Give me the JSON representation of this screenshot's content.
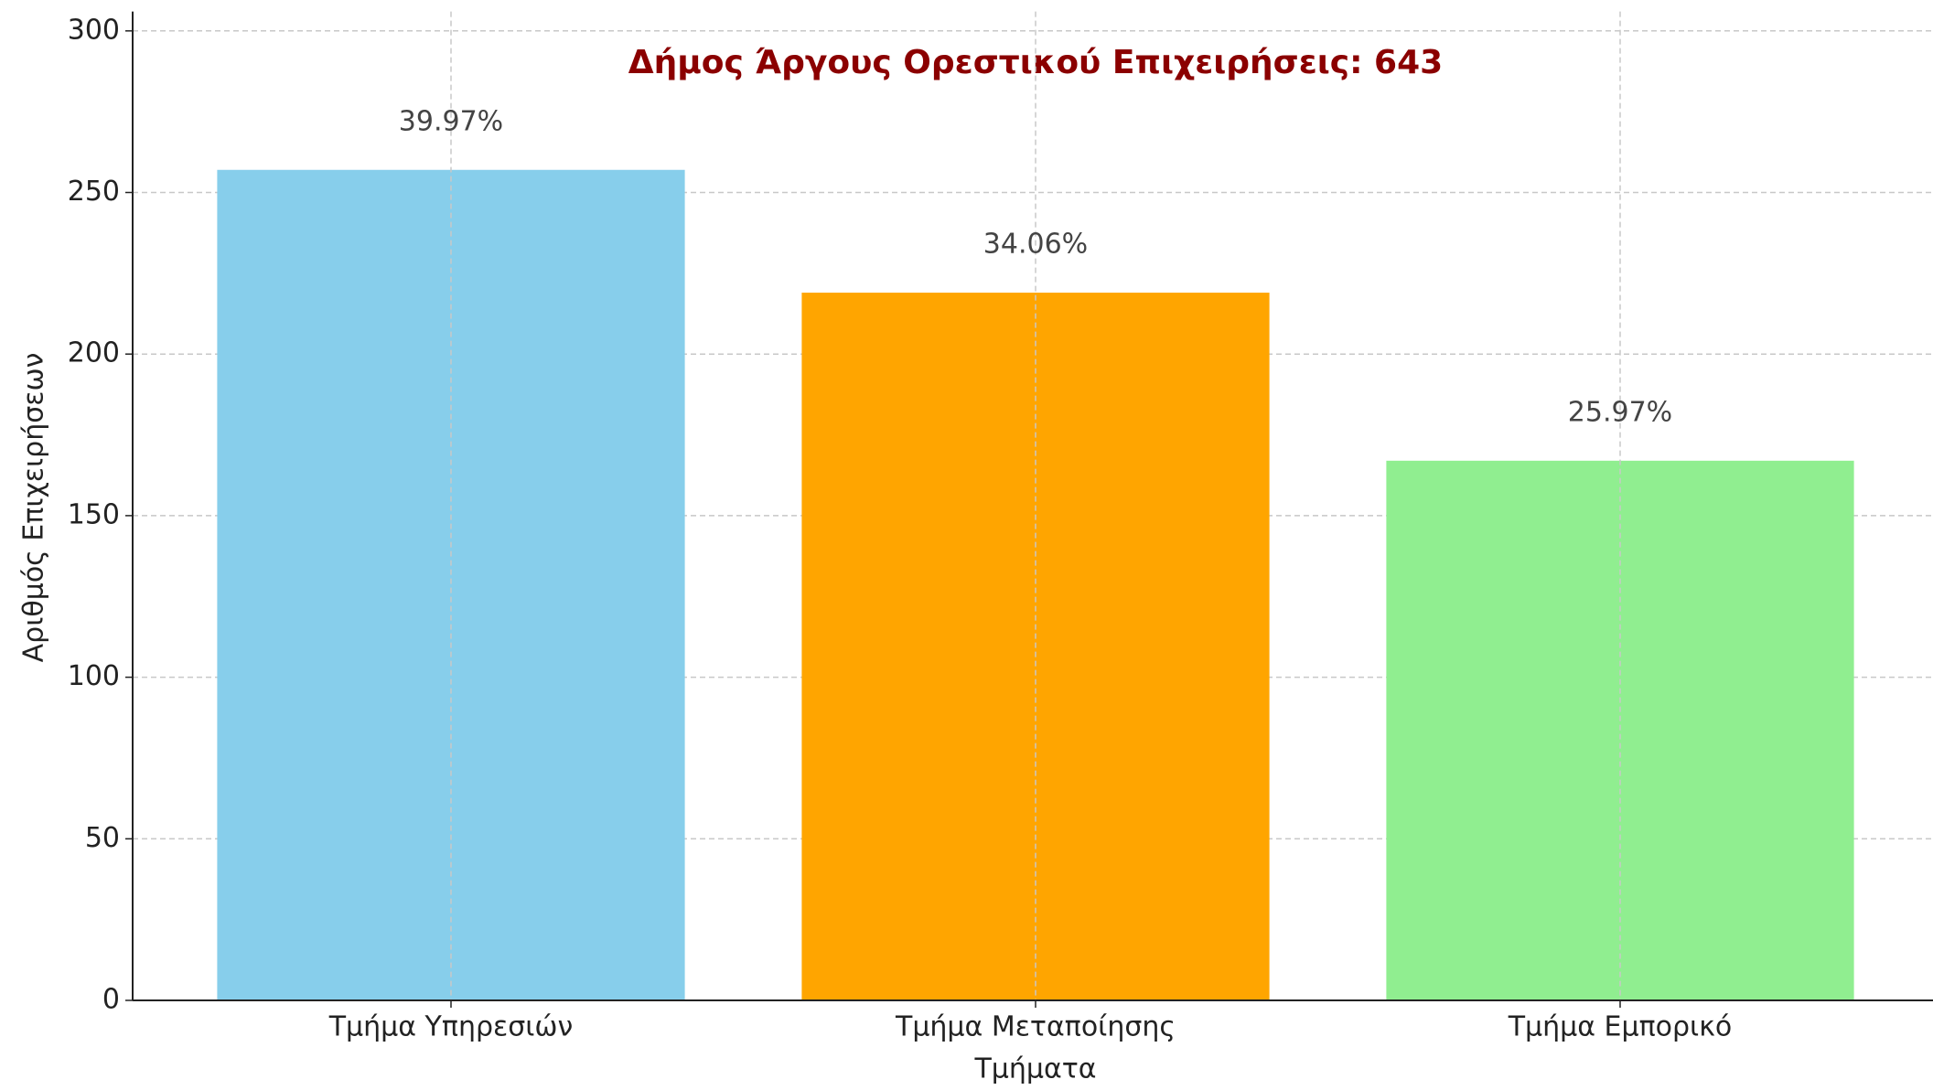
{
  "chart_data": {
    "type": "bar",
    "title": "Δήμος Άργους Ορεστικού Επιχειρήσεις: 643",
    "xlabel": "Τμήματα",
    "ylabel": "Αριθμός Επιχειρήσεων",
    "categories": [
      "Τμήμα Υπηρεσιών",
      "Τμήμα Μεταποίησης",
      "Τμήμα Εμπορικό"
    ],
    "values": [
      257,
      219,
      167
    ],
    "annotations": [
      "39.97%",
      "34.06%",
      "25.97%"
    ],
    "colors": [
      "#87ceeb",
      "#ffa500",
      "#90ee90"
    ],
    "ylim": [
      0,
      306
    ],
    "yticks": [
      0,
      50,
      100,
      150,
      200,
      250,
      300
    ],
    "grid": true
  }
}
